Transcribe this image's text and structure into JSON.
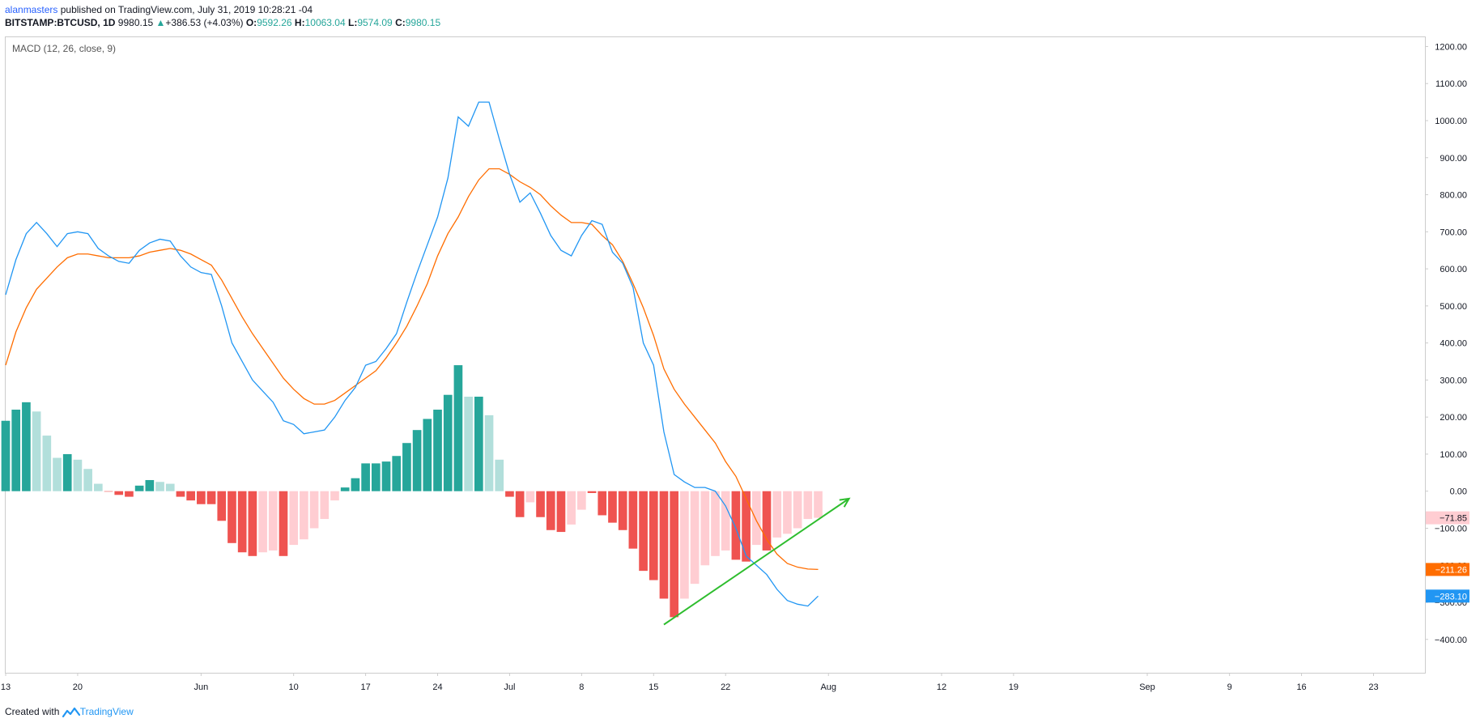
{
  "header": {
    "user": "alanmasters",
    "published": "published on TradingView.com, July 31, 2019 10:28:21 -04",
    "symbol": "BITSTAMP:BTCUSD, 1D",
    "price": "9980.15",
    "change_arrow": "▲",
    "change": "+386.53 (+4.03%)",
    "o_label": "O:",
    "o_value": "9592.26",
    "h_label": "H:",
    "h_value": "10063.04",
    "l_label": "L:",
    "l_value": "9574.09",
    "c_label": "C:",
    "c_value": "9980.15"
  },
  "footer": {
    "created_with": "Created with",
    "brand": "TradingView",
    "logo_icon": "tradingview-logo-icon"
  },
  "colors": {
    "macd_line": "#2196f3",
    "signal_line": "#ff6d00",
    "hist_pos_strong": "#26a69a",
    "hist_pos_weak": "#b2dfdb",
    "hist_neg_strong": "#ef5350",
    "hist_neg_weak": "#ffcdd2",
    "trendline": "#2ebd2e",
    "axis_text": "#131722"
  },
  "chart_data": {
    "type": "line",
    "title": "MACD (12, 26, close, 9)",
    "ylim": [
      -490,
      1225
    ],
    "yticks": [
      1200,
      1100,
      1000,
      900,
      800,
      700,
      600,
      500,
      400,
      300,
      200,
      100,
      0,
      -100,
      -200,
      -300,
      -400
    ],
    "ytick_labels": [
      "1200.00",
      "1100.00",
      "1000.00",
      "900.00",
      "800.00",
      "700.00",
      "600.00",
      "500.00",
      "400.00",
      "300.00",
      "200.00",
      "100.00",
      "0.00",
      "−100.00",
      "−200.00",
      "−300.00",
      "−400.00"
    ],
    "x_start": "2019-05-13",
    "x_end": "2019-09-28",
    "xticks": [
      {
        "date": "2019-05-13",
        "label": "13"
      },
      {
        "date": "2019-05-20",
        "label": "20"
      },
      {
        "date": "2019-06-01",
        "label": "Jun"
      },
      {
        "date": "2019-06-10",
        "label": "10"
      },
      {
        "date": "2019-06-17",
        "label": "17"
      },
      {
        "date": "2019-06-24",
        "label": "24"
      },
      {
        "date": "2019-07-01",
        "label": "Jul"
      },
      {
        "date": "2019-07-08",
        "label": "8"
      },
      {
        "date": "2019-07-15",
        "label": "15"
      },
      {
        "date": "2019-07-22",
        "label": "22"
      },
      {
        "date": "2019-08-01",
        "label": "Aug"
      },
      {
        "date": "2019-08-12",
        "label": "12"
      },
      {
        "date": "2019-08-19",
        "label": "19"
      },
      {
        "date": "2019-09-01",
        "label": "Sep"
      },
      {
        "date": "2019-09-09",
        "label": "9"
      },
      {
        "date": "2019-09-16",
        "label": "16"
      },
      {
        "date": "2019-09-23",
        "label": "23"
      }
    ],
    "dates": [
      "2019-05-13",
      "2019-05-14",
      "2019-05-15",
      "2019-05-16",
      "2019-05-17",
      "2019-05-18",
      "2019-05-19",
      "2019-05-20",
      "2019-05-21",
      "2019-05-22",
      "2019-05-23",
      "2019-05-24",
      "2019-05-25",
      "2019-05-26",
      "2019-05-27",
      "2019-05-28",
      "2019-05-29",
      "2019-05-30",
      "2019-05-31",
      "2019-06-01",
      "2019-06-02",
      "2019-06-03",
      "2019-06-04",
      "2019-06-05",
      "2019-06-06",
      "2019-06-07",
      "2019-06-08",
      "2019-06-09",
      "2019-06-10",
      "2019-06-11",
      "2019-06-12",
      "2019-06-13",
      "2019-06-14",
      "2019-06-15",
      "2019-06-16",
      "2019-06-17",
      "2019-06-18",
      "2019-06-19",
      "2019-06-20",
      "2019-06-21",
      "2019-06-22",
      "2019-06-23",
      "2019-06-24",
      "2019-06-25",
      "2019-06-26",
      "2019-06-27",
      "2019-06-28",
      "2019-06-29",
      "2019-06-30",
      "2019-07-01",
      "2019-07-02",
      "2019-07-03",
      "2019-07-04",
      "2019-07-05",
      "2019-07-06",
      "2019-07-07",
      "2019-07-08",
      "2019-07-09",
      "2019-07-10",
      "2019-07-11",
      "2019-07-12",
      "2019-07-13",
      "2019-07-14",
      "2019-07-15",
      "2019-07-16",
      "2019-07-17",
      "2019-07-18",
      "2019-07-19",
      "2019-07-20",
      "2019-07-21",
      "2019-07-22",
      "2019-07-23",
      "2019-07-24",
      "2019-07-25",
      "2019-07-26",
      "2019-07-27",
      "2019-07-28",
      "2019-07-29",
      "2019-07-30",
      "2019-07-31"
    ],
    "series": [
      {
        "name": "MACD",
        "values": [
          530,
          625,
          695,
          725,
          695,
          660,
          695,
          700,
          695,
          655,
          635,
          620,
          615,
          650,
          670,
          680,
          675,
          635,
          605,
          590,
          585,
          500,
          400,
          350,
          300,
          270,
          240,
          190,
          180,
          155,
          160,
          165,
          200,
          245,
          280,
          340,
          350,
          385,
          425,
          510,
          590,
          665,
          740,
          845,
          1010,
          985,
          1050,
          1050,
          950,
          855,
          780,
          805,
          750,
          690,
          650,
          635,
          690,
          730,
          720,
          645,
          615,
          550,
          400,
          340,
          160,
          45,
          25,
          10,
          10,
          0,
          -40,
          -100,
          -175,
          -200,
          -225,
          -265,
          -295,
          -305,
          -310,
          -283.1
        ]
      },
      {
        "name": "Signal",
        "values": [
          340,
          430,
          495,
          545,
          575,
          605,
          630,
          640,
          640,
          635,
          630,
          630,
          630,
          635,
          645,
          650,
          655,
          650,
          640,
          625,
          610,
          570,
          520,
          470,
          425,
          385,
          345,
          305,
          275,
          250,
          235,
          235,
          245,
          265,
          285,
          305,
          325,
          360,
          400,
          445,
          500,
          560,
          635,
          695,
          740,
          795,
          840,
          870,
          870,
          855,
          835,
          820,
          800,
          770,
          745,
          725,
          725,
          720,
          690,
          665,
          620,
          560,
          495,
          420,
          330,
          275,
          235,
          200,
          165,
          130,
          80,
          40,
          -20,
          -80,
          -130,
          -170,
          -195,
          -205,
          -210,
          -211.26
        ]
      },
      {
        "name": "Histogram",
        "values": [
          190,
          220,
          240,
          215,
          150,
          90,
          100,
          85,
          60,
          20,
          0,
          -10,
          -15,
          15,
          30,
          25,
          20,
          -15,
          -25,
          -35,
          -35,
          -80,
          -140,
          -165,
          -175,
          -165,
          -160,
          -175,
          -145,
          -130,
          -100,
          -75,
          -25,
          10,
          35,
          75,
          75,
          80,
          95,
          130,
          165,
          195,
          220,
          260,
          340,
          255,
          255,
          205,
          85,
          -15,
          -70,
          -30,
          -70,
          -105,
          -110,
          -90,
          -50,
          -5,
          -65,
          -85,
          -105,
          -155,
          -215,
          -240,
          -290,
          -340,
          -290,
          -250,
          -200,
          -175,
          -160,
          -185,
          -190,
          -145,
          -160,
          -125,
          -115,
          -100,
          -75,
          -71.85
        ]
      }
    ],
    "hist_styles": [
      "ps",
      "ps",
      "ps",
      "pw",
      "pw",
      "pw",
      "ps",
      "pw",
      "pw",
      "pw",
      "n",
      "ns",
      "ns",
      "ps",
      "ps",
      "pw",
      "pw",
      "ns",
      "ns",
      "ns",
      "ns",
      "ns",
      "ns",
      "ns",
      "ns",
      "nw",
      "nw",
      "ns",
      "nw",
      "nw",
      "nw",
      "nw",
      "nw",
      "ps",
      "ps",
      "ps",
      "ps",
      "ps",
      "ps",
      "ps",
      "ps",
      "ps",
      "ps",
      "ps",
      "ps",
      "pw",
      "ps",
      "pw",
      "pw",
      "ns",
      "ns",
      "nw",
      "ns",
      "ns",
      "ns",
      "nw",
      "nw",
      "ns",
      "ns",
      "ns",
      "ns",
      "ns",
      "ns",
      "ns",
      "ns",
      "ns",
      "nw",
      "nw",
      "nw",
      "nw",
      "nw",
      "ns",
      "ns",
      "nw",
      "ns",
      "nw",
      "nw",
      "nw",
      "nw",
      "nw"
    ],
    "trendline": {
      "from": {
        "date": "2019-07-16",
        "value": -360
      },
      "to": {
        "date": "2019-08-03",
        "value": -20
      }
    },
    "last_value_labels": [
      {
        "text": "−71.85",
        "value": -71.85,
        "bg": "#ffcdd2",
        "fg": "#131722"
      },
      {
        "text": "−211.26",
        "value": -211.26,
        "bg": "#ff6d00",
        "fg": "#ffffff"
      },
      {
        "text": "−283.10",
        "value": -283.1,
        "bg": "#2196f3",
        "fg": "#ffffff"
      }
    ],
    "grid": false
  }
}
